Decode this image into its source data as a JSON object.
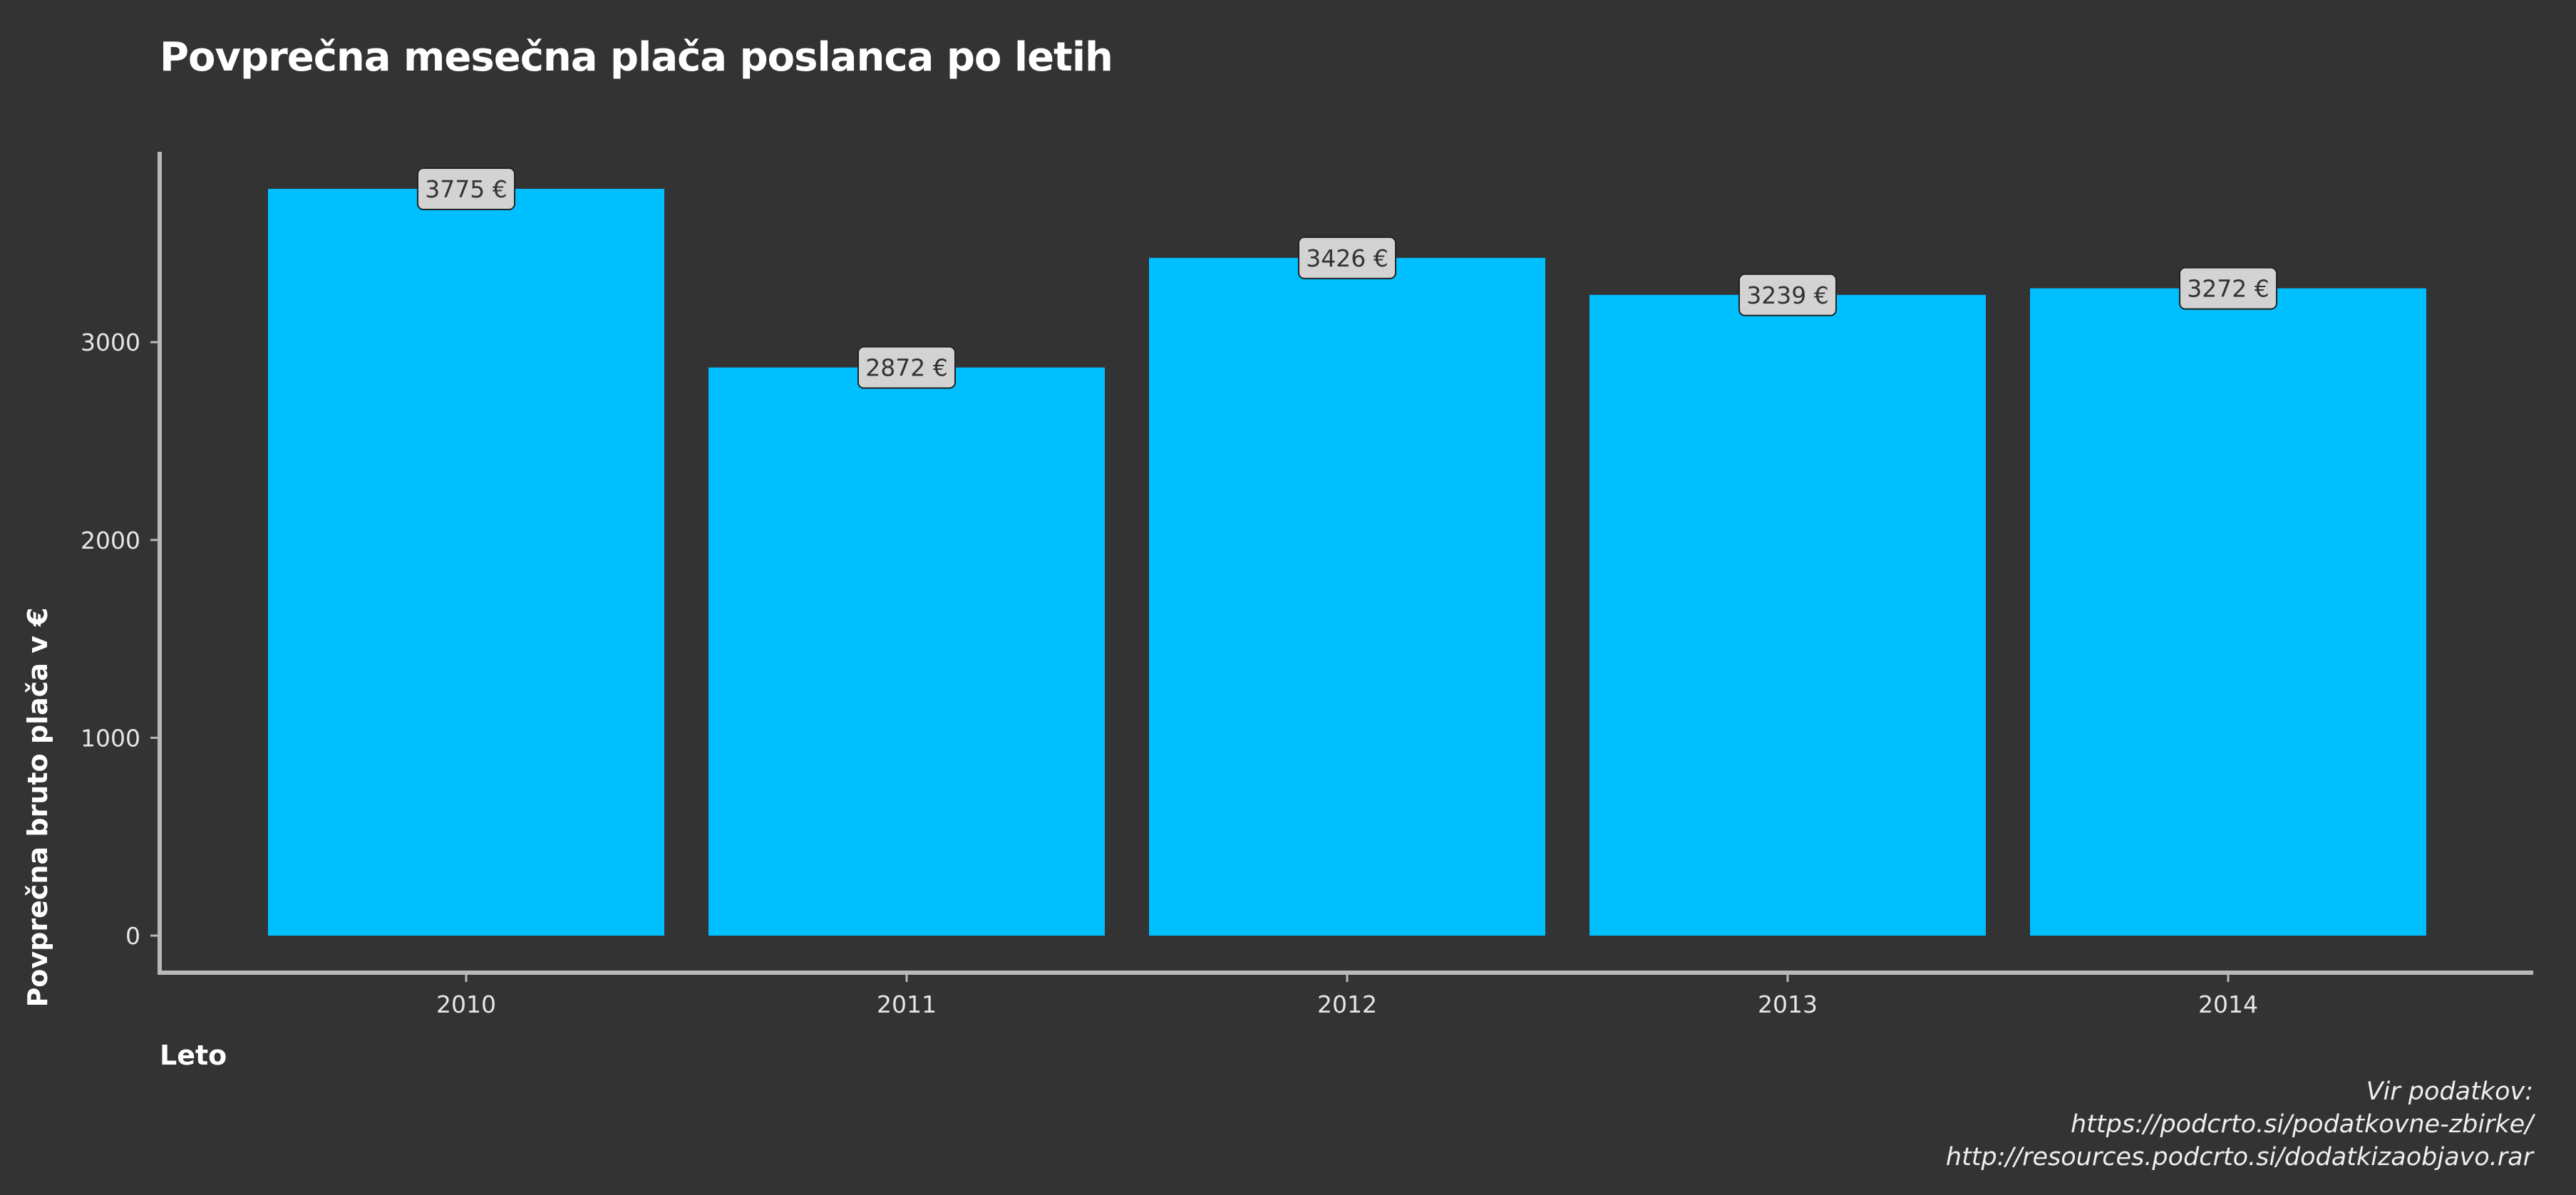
{
  "chart_data": {
    "type": "bar",
    "title": "Povprečna mesečna plača poslanca po letih",
    "xlabel": "Leto",
    "ylabel": "Povprečna bruto plača v €",
    "categories": [
      "2010",
      "2011",
      "2012",
      "2013",
      "2014"
    ],
    "values": [
      3775,
      2872,
      3426,
      3239,
      3272
    ],
    "data_labels": [
      "3775 €",
      "2872 €",
      "3426 €",
      "3239 €",
      "3272 €"
    ],
    "yticks": [
      0,
      1000,
      2000,
      3000
    ],
    "ytick_labels": [
      "0",
      "1000",
      "2000",
      "3000"
    ],
    "ylim": [
      0,
      3775
    ],
    "grid": false,
    "legend": "none",
    "colors": {
      "bar": "#00bfff",
      "background": "#333333",
      "axis": "#b8b8b8",
      "label_box": "#d3d3d3"
    }
  },
  "caption": {
    "line1": "Vir podatkov:",
    "line2": "https://podcrto.si/podatkovne-zbirke/",
    "line3": "http://resources.podcrto.si/dodatkizaobjavo.rar"
  }
}
